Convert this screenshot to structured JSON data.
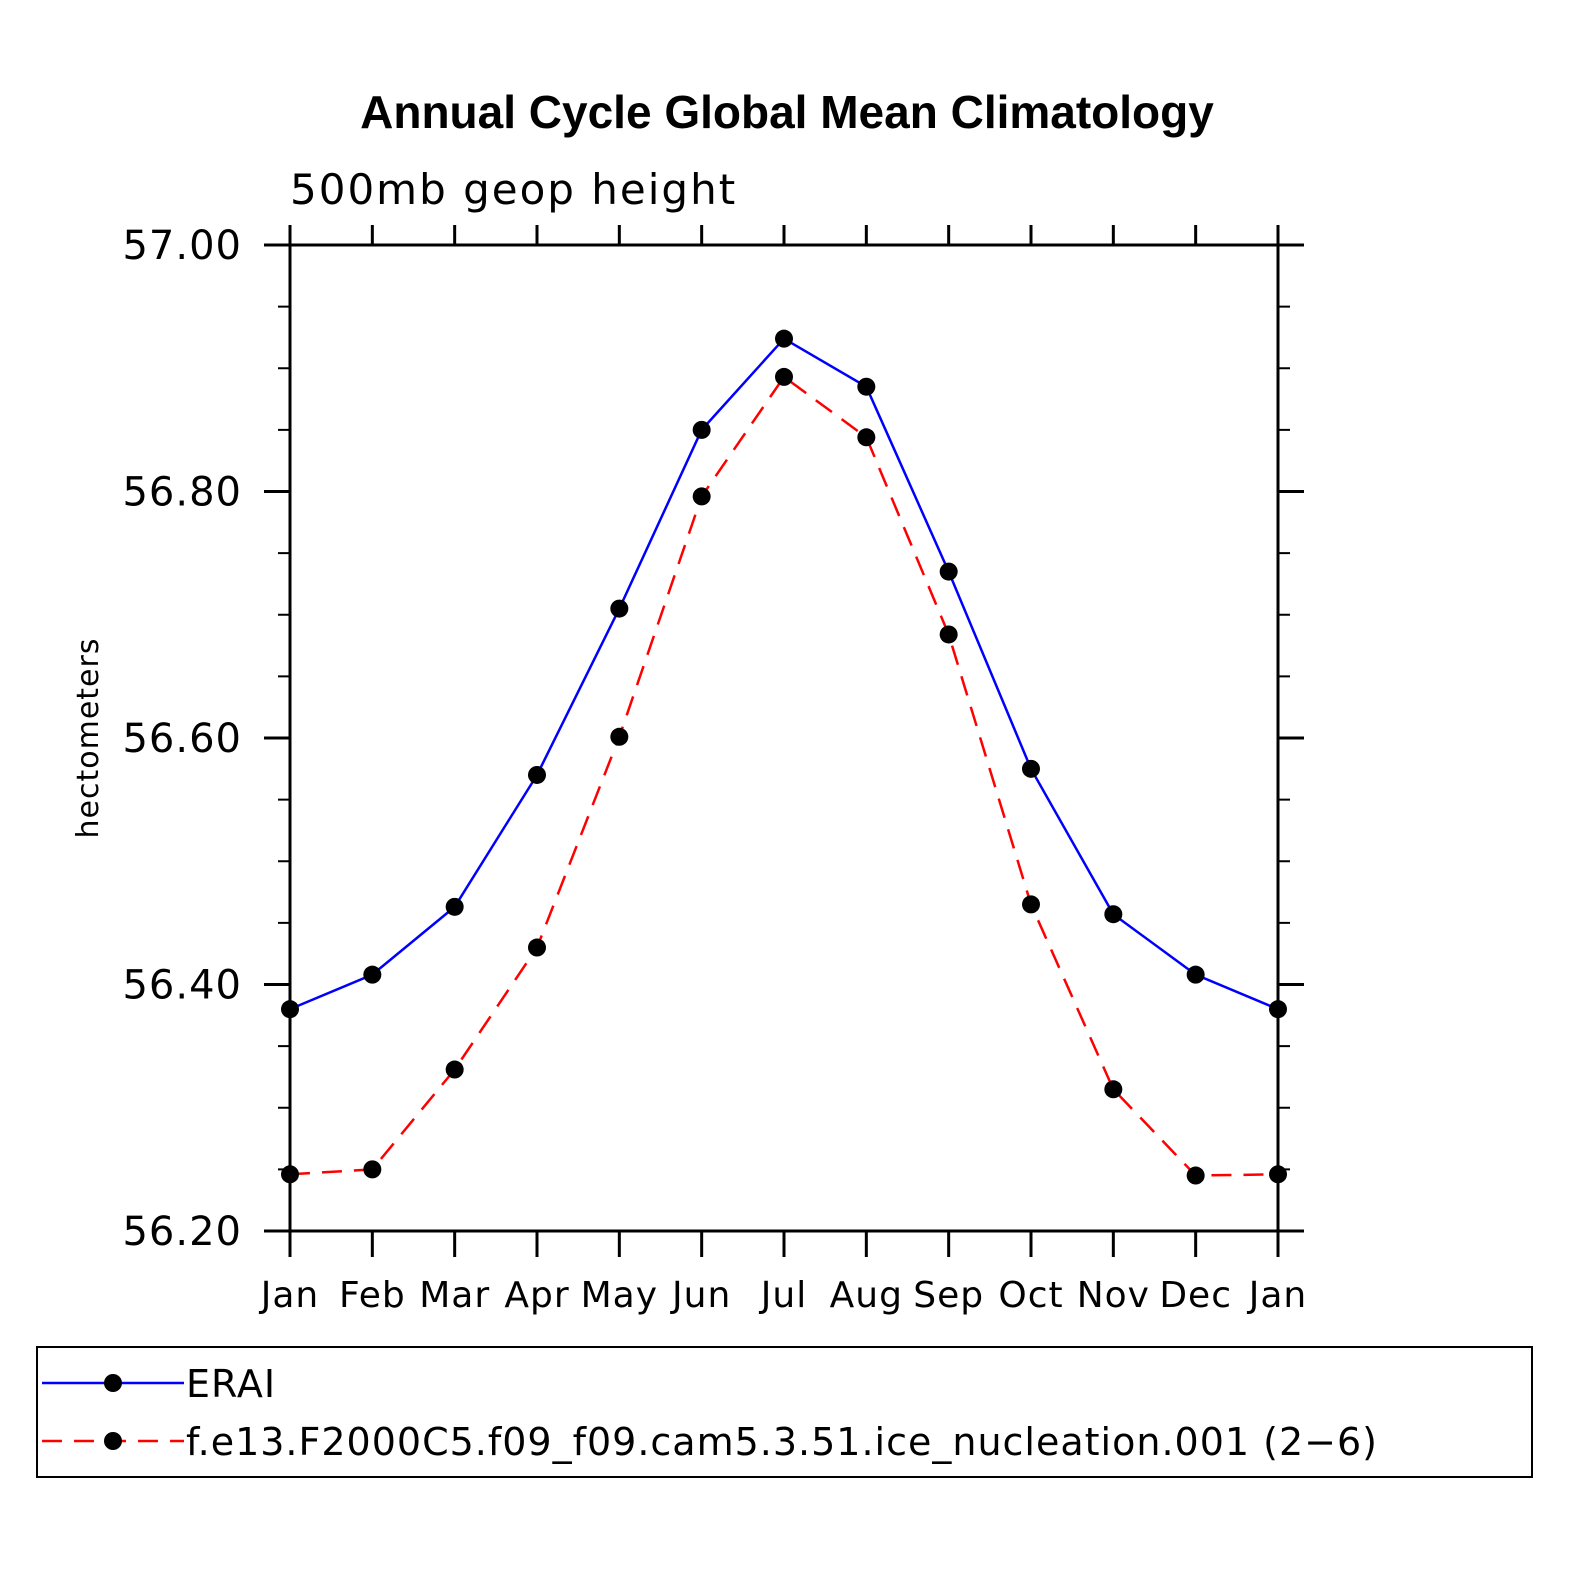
{
  "chart_data": {
    "type": "line",
    "title": "Annual Cycle Global Mean Climatology",
    "subtitle": "500mb geop height",
    "xlabel": "",
    "ylabel": "hectometers",
    "categories": [
      "Jan",
      "Feb",
      "Mar",
      "Apr",
      "May",
      "Jun",
      "Jul",
      "Aug",
      "Sep",
      "Oct",
      "Nov",
      "Dec",
      "Jan"
    ],
    "ylim": [
      56.2,
      57.0
    ],
    "yticks": [
      "56.20",
      "56.40",
      "56.60",
      "56.80",
      "57.00"
    ],
    "series": [
      {
        "name": "ERAI",
        "color": "#0000ff",
        "dash": "solid",
        "marker": "filled-circle",
        "values": [
          56.38,
          56.408,
          56.463,
          56.57,
          56.705,
          56.85,
          56.924,
          56.885,
          56.735,
          56.575,
          56.457,
          56.408,
          56.38
        ]
      },
      {
        "name": "f.e13.F2000C5.f09_f09.cam5.3.51.ice_nucleation.001 (2−6)",
        "color": "#ff0000",
        "dash": "dashed",
        "marker": "filled-circle",
        "values": [
          56.246,
          56.25,
          56.331,
          56.43,
          56.601,
          56.796,
          56.893,
          56.844,
          56.684,
          56.465,
          56.315,
          56.245,
          56.246
        ]
      }
    ],
    "grid": false,
    "legend_position": "bottom"
  }
}
